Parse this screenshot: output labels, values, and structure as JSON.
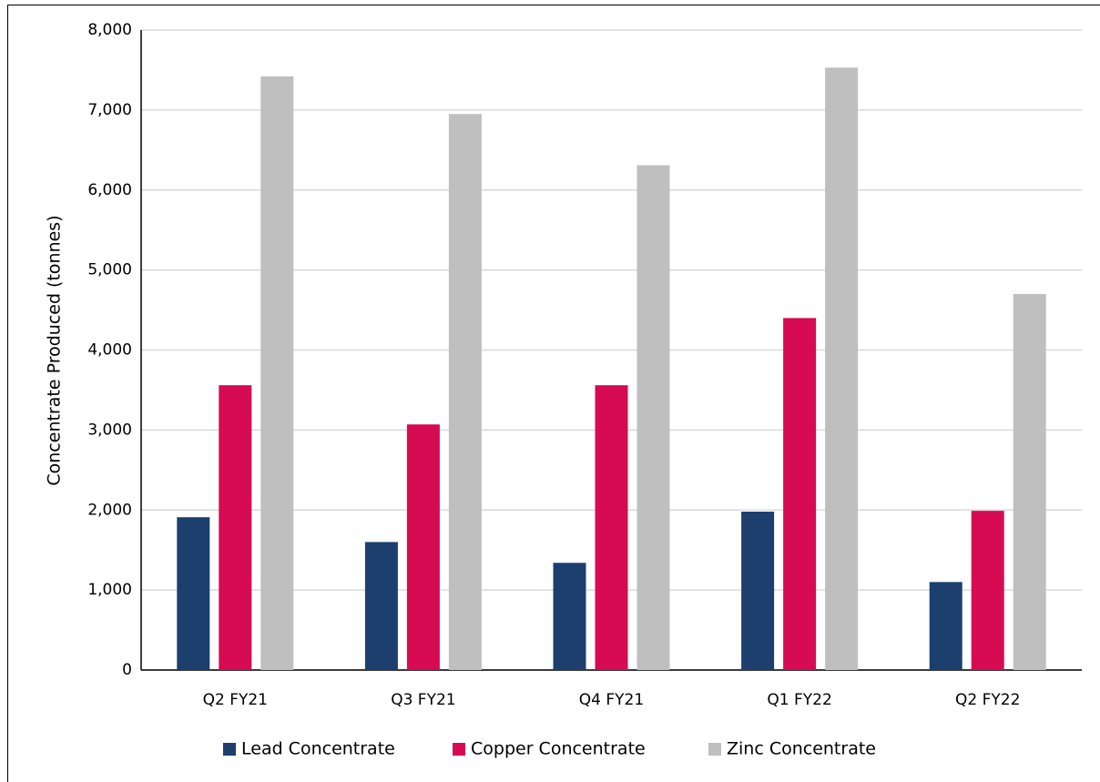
{
  "chart_data": {
    "type": "bar",
    "y_label": "Concentrate Produced (tonnes)",
    "categories": [
      "Q2 FY21",
      "Q3 FY21",
      "Q4 FY21",
      "Q1 FY22",
      "Q2 FY22"
    ],
    "series": [
      {
        "name": "Lead Concentrate",
        "color": "#1c3f6e",
        "values": [
          1910,
          1600,
          1340,
          1980,
          1100
        ]
      },
      {
        "name": "Copper Concentrate",
        "color": "#d60b52",
        "values": [
          3560,
          3070,
          3560,
          4400,
          1990
        ]
      },
      {
        "name": "Zinc Concentrate",
        "color": "#bfbfbf",
        "values": [
          7420,
          6950,
          6310,
          7530,
          4700
        ]
      }
    ],
    "ylim": [
      0,
      8000
    ],
    "yticks": [
      0,
      {
        "value": 1000,
        "label": "1,000"
      },
      {
        "value": 2000,
        "label": "2,000"
      },
      {
        "value": 3000,
        "label": "3,000"
      },
      {
        "value": 4000,
        "label": "4,000"
      },
      {
        "value": 5000,
        "label": "5,000"
      },
      {
        "value": 6000,
        "label": "6,000"
      },
      {
        "value": 7000,
        "label": "7,000"
      },
      {
        "value": 8000,
        "label": "8,000"
      }
    ],
    "grid": true,
    "legend": "bottom"
  }
}
